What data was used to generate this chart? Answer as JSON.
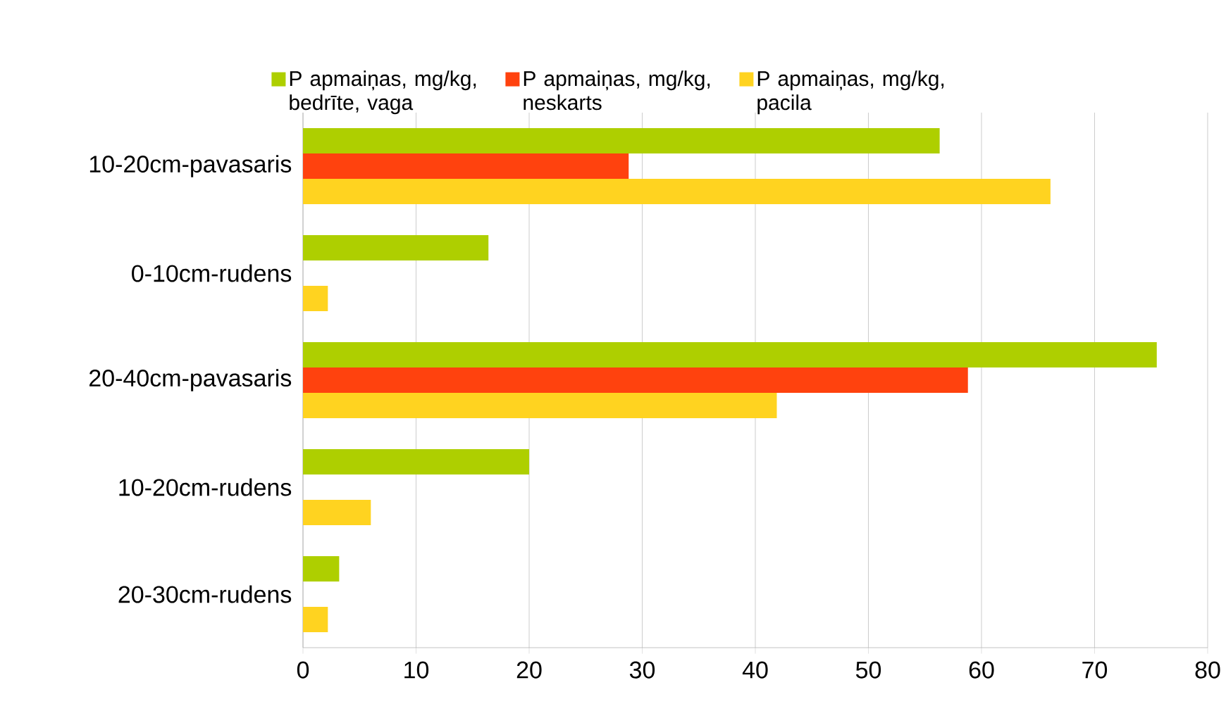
{
  "chart_data": {
    "type": "bar",
    "orientation": "horizontal",
    "categories": [
      "10-20cm-pavasaris",
      "0-10cm-rudens",
      "20-40cm-pavasaris",
      "10-20cm-rudens",
      "20-30cm-rudens"
    ],
    "series": [
      {
        "name": "P apmaiņas, mg/kg, bedrīte, vaga",
        "color": "#aecf00",
        "values": [
          56.3,
          16.4,
          75.5,
          20.0,
          3.2
        ]
      },
      {
        "name": "P apmaiņas, mg/kg, neskarts",
        "color": "#ff420e",
        "values": [
          28.8,
          null,
          58.8,
          null,
          null
        ]
      },
      {
        "name": "P apmaiņas, mg/kg, pacila",
        "color": "#ffd320",
        "values": [
          66.1,
          2.2,
          41.9,
          6.0,
          2.2
        ]
      }
    ],
    "xlim": [
      0,
      80
    ],
    "xticks": [
      0,
      10,
      20,
      30,
      40,
      50,
      60,
      70,
      80
    ],
    "grid": "x",
    "legend": "top"
  }
}
